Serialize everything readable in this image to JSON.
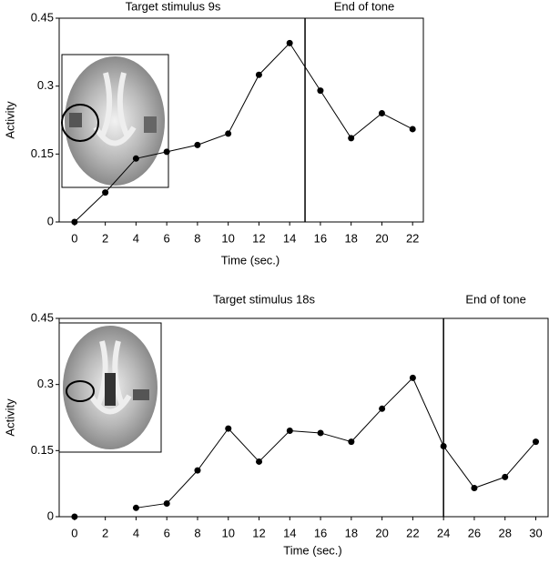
{
  "chart_data": [
    {
      "type": "line",
      "title": "Target stimulus  9s",
      "xlabel": "Time (sec.)",
      "ylabel": "Activity",
      "x": [
        0,
        2,
        4,
        6,
        8,
        10,
        12,
        14,
        16,
        18,
        20,
        22
      ],
      "values": [
        0,
        0.065,
        0.14,
        0.155,
        0.17,
        0.195,
        0.325,
        0.395,
        0.29,
        0.185,
        0.24,
        0.205
      ],
      "color": "#000000",
      "xlim": [
        -1,
        22.7
      ],
      "xticks": [
        0,
        2,
        4,
        6,
        8,
        10,
        12,
        14,
        16,
        18,
        20,
        22
      ],
      "ylim": [
        0,
        0.45
      ],
      "yticks": [
        0,
        0.15,
        0.3,
        0.45
      ],
      "vline": {
        "x": 15,
        "label": "End of tone"
      }
    },
    {
      "type": "line",
      "title": "Target stimulus 18s",
      "xlabel": "Time (sec.)",
      "ylabel": "Activity",
      "x": [
        0,
        2,
        4,
        6,
        8,
        10,
        12,
        14,
        16,
        18,
        20,
        22,
        24,
        26,
        28,
        30
      ],
      "values": [
        0,
        null,
        0.02,
        0.03,
        0.105,
        0.2,
        0.125,
        0.195,
        0.19,
        0.17,
        0.245,
        0.315,
        0.16,
        0.065,
        0.09,
        0.17
      ],
      "color": "#000000",
      "xlim": [
        -1,
        30.8
      ],
      "xticks": [
        0,
        2,
        4,
        6,
        8,
        10,
        12,
        14,
        16,
        18,
        20,
        22,
        24,
        26,
        28,
        30
      ],
      "ylim": [
        0,
        0.45
      ],
      "yticks": [
        0,
        0.15,
        0.3,
        0.45
      ],
      "vline": {
        "x": 24,
        "label": "End of tone"
      }
    }
  ]
}
